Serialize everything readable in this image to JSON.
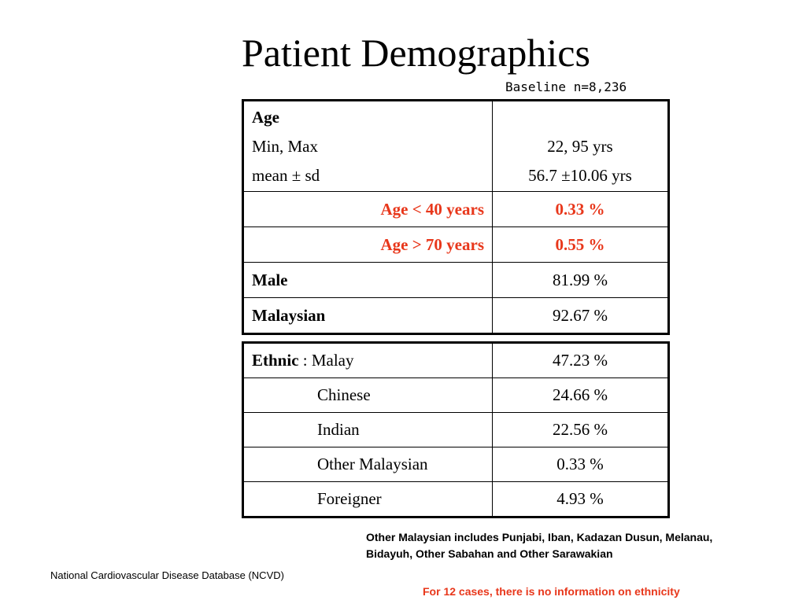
{
  "slide": {
    "title": "Patient Demographics",
    "baseline": "Baseline n=8,236"
  },
  "age_table": {
    "age_heading": "Age",
    "minmax_label": "Min, Max",
    "minmax_value": "22, 95 yrs",
    "mean_label": "mean ± sd",
    "mean_value": "56.7 ±10.06 yrs",
    "rows": [
      {
        "label": "Age < 40 years",
        "value": "0.33 %"
      },
      {
        "label": "Age > 70 years",
        "value": "0.55 %"
      },
      {
        "label": "Male",
        "value": "81.99 %"
      },
      {
        "label": "Malaysian",
        "value": "92.67 %"
      }
    ]
  },
  "ethnic_table": {
    "heading": "Ethnic",
    "rows": [
      {
        "label": ": Malay",
        "value": "47.23 %"
      },
      {
        "label": "Chinese",
        "value": "24.66 %"
      },
      {
        "label": "Indian",
        "value": "22.56 %"
      },
      {
        "label": "Other Malaysian",
        "value": "0.33 %"
      },
      {
        "label": "Foreigner",
        "value": "4.93 %"
      }
    ]
  },
  "notes": {
    "other_malaysian_line1": "Other Malaysian includes Punjabi, Iban, Kadazan Dusun, Melanau,",
    "other_malaysian_line2": "Bidayuh, Other Sabahan and Other Sarawakian",
    "source": "National Cardiovascular Disease Database (NCVD)",
    "missing": "For 12 cases, there is no information on ethnicity"
  },
  "colors": {
    "highlight": "#e8371b",
    "text": "#000000",
    "background": "#ffffff"
  }
}
